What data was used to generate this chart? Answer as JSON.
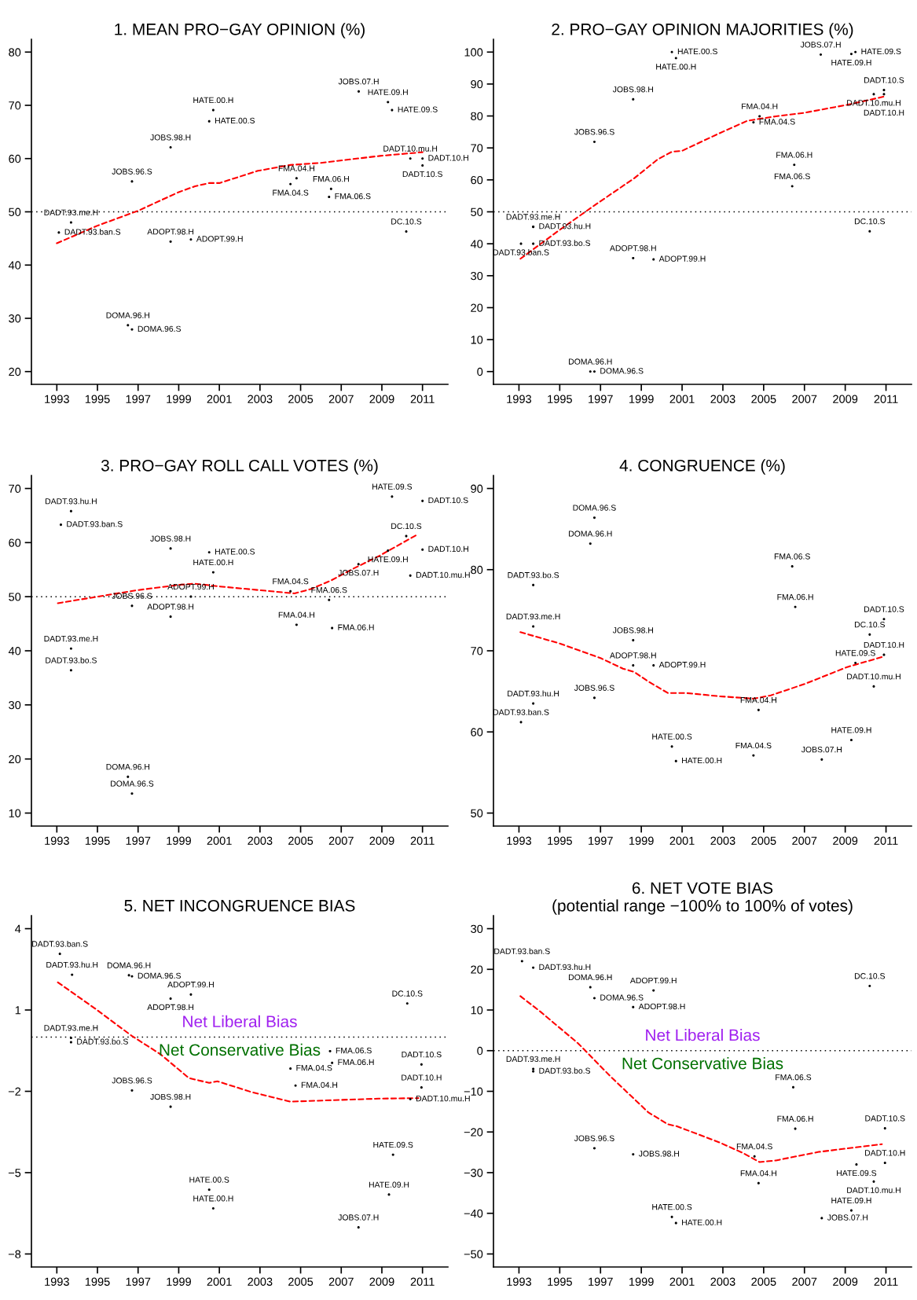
{
  "chart_data": [
    {
      "type": "scatter",
      "title": "1. MEAN PRO−GAY OPINION (%)",
      "xlim": [
        1991.75,
        2012.25
      ],
      "xticks": [
        1993,
        1995,
        1997,
        1999,
        2001,
        2003,
        2005,
        2007,
        2009,
        2011
      ],
      "ylim": [
        17.6,
        82.4
      ],
      "yticks": [
        20,
        30,
        40,
        50,
        60,
        70,
        80
      ],
      "ref_lines": [
        {
          "axis": "y",
          "value": 50,
          "color": "#000000",
          "line_style": "dotted"
        }
      ],
      "series": [
        {
          "color": "#000000",
          "marker": "circle",
          "x": [
            2007.86,
            2009.3,
            2009.5,
            2000.7,
            2000.5,
            1998.6,
            1996.7,
            2004.8,
            2004.5,
            2006.5,
            2006.4,
            2010.4,
            2011.0,
            2011.0,
            2010.2,
            1993.7,
            1993.1,
            1998.6,
            1999.6,
            1996.5,
            1996.7
          ],
          "values": [
            72.6,
            70.6,
            69.1,
            69.1,
            67.0,
            62.1,
            55.7,
            56.3,
            55.2,
            54.3,
            52.8,
            60.0,
            60.0,
            58.7,
            46.3,
            48.0,
            46.1,
            44.4,
            44.8,
            28.7,
            27.9
          ],
          "value_labels": [
            "JOBS.07.H",
            "HATE.09.H",
            "HATE.09.S",
            "HATE.00.H",
            "HATE.00.S",
            "JOBS.98.H",
            "JOBS.96.S",
            "FMA.04.H",
            "FMA.04.S",
            "FMA.06.H",
            "FMA.06.S",
            "DADT.10.mu.H",
            "DADT.10.H",
            "DADT.10.S",
            "DC.10.S",
            "DADT.93.me.H",
            "DADT.93.ban.S",
            "ADOPT.98.H",
            "ADOPT.99.H",
            "DOMA.96.H",
            "DOMA.96.S"
          ]
        },
        {
          "type": "line",
          "color": "#ff0000",
          "line_style": "dashed",
          "x": [
            1993,
            1995,
            1997,
            1999,
            1999.8,
            2000.5,
            2001,
            2002.9,
            2004.5,
            2006,
            2008.9,
            2011
          ],
          "values": [
            44.1,
            47.4,
            50.2,
            53.7,
            54.8,
            55.4,
            55.4,
            57.7,
            58.8,
            59.2,
            60.5,
            61.2
          ]
        }
      ]
    },
    {
      "type": "scatter",
      "title": "2. PRO−GAY OPINION MAJORITIES (%)",
      "xlim": [
        1991.75,
        2012.25
      ],
      "xticks": [
        1993,
        1995,
        1997,
        1999,
        2001,
        2003,
        2005,
        2007,
        2009,
        2011
      ],
      "ylim": [
        -4,
        104
      ],
      "yticks": [
        0,
        10,
        20,
        30,
        40,
        50,
        60,
        70,
        80,
        90,
        100
      ],
      "ref_lines": [
        {
          "axis": "y",
          "value": 50,
          "color": "#000000",
          "line_style": "dotted"
        }
      ],
      "series": [
        {
          "color": "#000000",
          "marker": "circle",
          "x": [
            2000.5,
            2000.7,
            2007.8,
            2009.3,
            2009.5,
            1998.6,
            2010.9,
            2010.4,
            2010.9,
            2004.8,
            2004.5,
            1996.7,
            2006.5,
            2006.4,
            2010.2,
            1993.7,
            1993.7,
            1993.1,
            1993.7,
            1998.6,
            1999.6,
            1996.5,
            1996.7
          ],
          "values": [
            100,
            98.1,
            99.2,
            99.4,
            100,
            85.2,
            88.1,
            86.8,
            86.8,
            79.9,
            78.0,
            71.9,
            64.7,
            58.0,
            43.9,
            45.3,
            45.3,
            40.0,
            40.0,
            35.5,
            35.1,
            0,
            0
          ],
          "value_labels": [
            "HATE.00.S",
            "HATE.00.H",
            "JOBS.07.H",
            "HATE.09.H",
            "HATE.09.S",
            "JOBS.98.H",
            "DADT.10.S",
            "DADT.10.mu.H",
            "DADT.10.H",
            "FMA.04.H",
            "FMA.04.S",
            "JOBS.96.S",
            "FMA.06.H",
            "FMA.06.S",
            "DC.10.S",
            "DADT.93.me.H",
            "DADT.93.hu.H",
            "DADT.93.ban.S",
            "DADT.93.bo.S",
            "ADOPT.98.H",
            "ADOPT.99.H",
            "DOMA.96.H",
            "DOMA.96.S"
          ]
        },
        {
          "type": "line",
          "color": "#ff0000",
          "line_style": "dashed",
          "x": [
            1993.07,
            1994.9,
            1996.7,
            1998.65,
            1999.8,
            2000.5,
            2001,
            2002.8,
            2004.2,
            2005.6,
            2007,
            2009.1,
            2011
          ],
          "values": [
            35.3,
            43.9,
            52.0,
            60.5,
            66.4,
            68.8,
            69.1,
            74.5,
            78.5,
            79.9,
            81.0,
            83.5,
            86.2
          ]
        }
      ]
    },
    {
      "type": "scatter",
      "title": "3. PRO−GAY ROLL CALL VOTES (%)",
      "xlim": [
        1991.75,
        2012.25
      ],
      "xticks": [
        1993,
        1995,
        1997,
        1999,
        2001,
        2003,
        2005,
        2007,
        2009,
        2011
      ],
      "ylim": [
        7.6,
        72.4
      ],
      "yticks": [
        10,
        20,
        30,
        40,
        50,
        60,
        70
      ],
      "ref_lines": [
        {
          "axis": "y",
          "value": 50,
          "color": "#000000",
          "line_style": "dotted"
        }
      ],
      "series": [
        {
          "color": "#000000",
          "marker": "circle",
          "x": [
            1993.7,
            1993.2,
            1998.6,
            2000.5,
            2000.7,
            2009.5,
            2011.0,
            2010.2,
            2009.3,
            2011.0,
            2007.85,
            2010.4,
            2004.5,
            1999.6,
            2006.4,
            1996.7,
            1998.6,
            2004.8,
            2006.55,
            1993.7,
            1993.7,
            1996.5,
            1996.7
          ],
          "values": [
            65.8,
            63.3,
            58.9,
            58.2,
            54.5,
            68.5,
            67.7,
            61.2,
            58.5,
            58.7,
            56.0,
            53.9,
            51.0,
            50.0,
            49.4,
            48.3,
            46.3,
            44.8,
            44.2,
            40.4,
            36.4,
            16.7,
            13.6
          ],
          "value_labels": [
            "DADT.93.hu.H",
            "DADT.93.ban.S",
            "JOBS.98.H",
            "HATE.00.S",
            "HATE.00.H",
            "HATE.09.S",
            "DADT.10.S",
            "DC.10.S",
            "HATE.09.H",
            "DADT.10.H",
            "JOBS.07.H",
            "DADT.10.mu.H",
            "FMA.04.S",
            "ADOPT.99.H",
            "FMA.06.S",
            "JOBS.96.S",
            "ADOPT.98.H",
            "FMA.04.H",
            "FMA.06.H",
            "DADT.93.me.H",
            "DADT.93.bo.S",
            "DOMA.96.H",
            "DOMA.96.S"
          ]
        },
        {
          "type": "line",
          "color": "#ff0000",
          "line_style": "dashed",
          "x": [
            1993.05,
            1995,
            1996.95,
            1999.05,
            1999.8,
            2001,
            2003,
            2004.7,
            2005.5,
            2006.5,
            2007.5,
            2008.9,
            2010.8
          ],
          "values": [
            48.8,
            50.0,
            51.2,
            52.2,
            52.4,
            51.9,
            51.2,
            50.6,
            51.4,
            53.0,
            55.0,
            57.6,
            61.6
          ]
        }
      ]
    },
    {
      "type": "scatter",
      "title": "4. CONGRUENCE (%)",
      "xlim": [
        1991.75,
        2012.25
      ],
      "xticks": [
        1993,
        1995,
        1997,
        1999,
        2001,
        2003,
        2005,
        2007,
        2009,
        2011
      ],
      "ylim": [
        48.4,
        91.6
      ],
      "yticks": [
        50,
        60,
        70,
        80,
        90
      ],
      "series": [
        {
          "color": "#000000",
          "marker": "circle",
          "x": [
            1996.7,
            1996.5,
            2006.4,
            1993.7,
            2006.55,
            2010.9,
            1993.7,
            2010.2,
            1998.6,
            2010.9,
            2009.5,
            1998.6,
            1999.6,
            2010.4,
            1996.7,
            1993.7,
            2004.75,
            1993.1,
            2009.3,
            2000.5,
            2004.5,
            2007.85,
            2000.7
          ],
          "values": [
            86.4,
            83.2,
            80.4,
            78.1,
            75.4,
            73.9,
            73.0,
            72.0,
            71.3,
            69.5,
            68.5,
            68.2,
            68.2,
            65.6,
            64.2,
            63.5,
            62.7,
            61.2,
            59.0,
            58.2,
            57.1,
            56.6,
            56.4
          ],
          "value_labels": [
            "DOMA.96.S",
            "DOMA.96.H",
            "FMA.06.S",
            "DADT.93.bo.S",
            "FMA.06.H",
            "DADT.10.S",
            "DADT.93.me.H",
            "DC.10.S",
            "JOBS.98.H",
            "DADT.10.H",
            "HATE.09.S",
            "ADOPT.98.H",
            "ADOPT.99.H",
            "DADT.10.mu.H",
            "JOBS.96.S",
            "DADT.93.hu.H",
            "FMA.04.H",
            "DADT.93.ban.S",
            "HATE.09.H",
            "HATE.00.S",
            "FMA.04.S",
            "JOBS.07.H",
            "HATE.00.H"
          ]
        },
        {
          "type": "line",
          "color": "#ff0000",
          "line_style": "dashed",
          "x": [
            1993.07,
            1995,
            1997,
            1998.1,
            1998.65,
            1999.35,
            2000.3,
            2001.2,
            2002.8,
            2004.5,
            2005.35,
            2007,
            2009.1,
            2010.9
          ],
          "values": [
            72.3,
            70.9,
            69.1,
            67.8,
            67.4,
            66.2,
            64.8,
            64.8,
            64.4,
            64.1,
            64.5,
            65.9,
            68.0,
            69.3
          ]
        }
      ]
    },
    {
      "type": "scatter",
      "title": "5. NET INCONGRUENCE BIAS",
      "xlim": [
        1991.75,
        2012.25
      ],
      "xticks": [
        1993,
        1995,
        1997,
        1999,
        2001,
        2003,
        2005,
        2007,
        2009,
        2011
      ],
      "ylim": [
        -8.48,
        4.48
      ],
      "yticks": [
        4,
        1,
        {
          "value": -2,
          "label": "−2"
        },
        {
          "value": -5,
          "label": "−5"
        },
        {
          "value": -8,
          "label": "−8"
        }
      ],
      "ref_lines": [
        {
          "axis": "y",
          "value": 0,
          "color": "#000000",
          "line_style": "dotted"
        }
      ],
      "annotations": [
        "Net Liberal Bias",
        "Net Conservative Bias"
      ],
      "series": [
        {
          "color": "#000000",
          "marker": "circle",
          "x": [
            1993.15,
            1993.75,
            1996.55,
            1996.7,
            1999.6,
            1998.6,
            2010.25,
            1993.7,
            1993.7,
            2006.45,
            2006.55,
            2010.95,
            2004.5,
            2004.75,
            2010.95,
            1996.7,
            2010.4,
            1998.6,
            2009.55,
            2000.5,
            2009.35,
            2000.7,
            2007.85
          ],
          "values": [
            3.07,
            2.3,
            2.28,
            2.24,
            1.57,
            1.42,
            1.24,
            -0.03,
            -0.19,
            -0.52,
            -0.95,
            -1.01,
            -1.16,
            -1.79,
            -1.86,
            -1.97,
            -2.29,
            -2.57,
            -4.34,
            -5.63,
            -5.81,
            -6.32,
            -7.02
          ],
          "value_labels": [
            "DADT.93.ban.S",
            "DADT.93.hu.H",
            "DOMA.96.H",
            "DOMA.96.S",
            "ADOPT.99.H",
            "ADOPT.98.H",
            "DC.10.S",
            "DADT.93.me.H",
            "DADT.93.bo.S",
            "FMA.06.S",
            "FMA.06.H",
            "DADT.10.S",
            "FMA.04.S",
            "FMA.04.H",
            "DADT.10.H",
            "JOBS.96.S",
            "DADT.10.mu.H",
            "JOBS.98.H",
            "HATE.09.S",
            "HATE.00.S",
            "HATE.09.H",
            "HATE.00.H",
            "JOBS.07.H"
          ]
        },
        {
          "type": "line",
          "color": "#ff0000",
          "line_style": "dashed",
          "x": [
            1993.05,
            1994.85,
            1996.7,
            1998.1,
            1999.5,
            2000.5,
            2000.9,
            2002.55,
            2004.5,
            2006.05,
            2008.85,
            2010.8
          ],
          "values": [
            2.02,
            1.07,
            0.04,
            -0.63,
            -1.51,
            -1.69,
            -1.63,
            -2.02,
            -2.38,
            -2.34,
            -2.27,
            -2.25
          ]
        }
      ]
    },
    {
      "type": "scatter",
      "title": "6. NET VOTE BIAS",
      "subtitle": "(potential range −100% to 100% of votes)",
      "xlim": [
        1991.75,
        2012.25
      ],
      "xticks": [
        1993,
        1995,
        1997,
        1999,
        2001,
        2003,
        2005,
        2007,
        2009,
        2011
      ],
      "ylim": [
        -53.2,
        33.2
      ],
      "yticks": [
        30,
        20,
        10,
        0,
        {
          "value": -10,
          "label": "−10"
        },
        {
          "value": -20,
          "label": "−20"
        },
        {
          "value": -30,
          "label": "−30"
        },
        {
          "value": -40,
          "label": "−40"
        },
        {
          "value": -50,
          "label": "−50"
        }
      ],
      "ref_lines": [
        {
          "axis": "y",
          "value": 0,
          "color": "#000000",
          "line_style": "dotted"
        }
      ],
      "annotations": [
        "Net Liberal Bias",
        "Net Conservative Bias"
      ],
      "series": [
        {
          "color": "#000000",
          "marker": "circle",
          "x": [
            1993.15,
            1993.7,
            1996.5,
            1999.6,
            1996.7,
            1998.6,
            2010.2,
            1993.7,
            1993.7,
            2006.45,
            2006.55,
            2010.95,
            1996.7,
            1998.6,
            2004.55,
            2010.95,
            2009.55,
            2004.75,
            2010.4,
            2009.3,
            2000.5,
            2007.85,
            2000.7
          ],
          "values": [
            22.0,
            20.4,
            15.6,
            14.8,
            12.9,
            10.7,
            15.9,
            -4.5,
            -5.1,
            -9.0,
            -19.2,
            -19.1,
            -24.0,
            -25.5,
            -26.0,
            -27.6,
            -28.0,
            -32.6,
            -32.2,
            -39.3,
            -40.9,
            -41.2,
            -42.4
          ],
          "value_labels": [
            "DADT.93.ban.S",
            "DADT.93.hu.H",
            "DOMA.96.H",
            "ADOPT.99.H",
            "DOMA.96.S",
            "ADOPT.98.H",
            "DC.10.S",
            "DADT.93.me.H",
            "DADT.93.bo.S",
            "FMA.06.S",
            "FMA.06.H",
            "DADT.10.S",
            "JOBS.96.S",
            "JOBS.98.H",
            "FMA.04.S",
            "DADT.10.H",
            "HATE.09.S",
            "FMA.04.H",
            "DADT.10.mu.H",
            "HATE.09.H",
            "HATE.00.S",
            "JOBS.07.H",
            "HATE.00.H"
          ]
        },
        {
          "type": "line",
          "color": "#ff0000",
          "line_style": "dashed",
          "x": [
            1993.07,
            1994.05,
            1995.9,
            1997.5,
            1999.35,
            2000.3,
            2000.75,
            2002.8,
            2004,
            2004.8,
            2005.6,
            2007.7,
            2010.8
          ],
          "values": [
            13.4,
            9.6,
            1.8,
            -6.4,
            -15.2,
            -18.1,
            -18.6,
            -22.5,
            -25.2,
            -27.4,
            -27.0,
            -24.9,
            -23.0
          ]
        }
      ]
    }
  ]
}
